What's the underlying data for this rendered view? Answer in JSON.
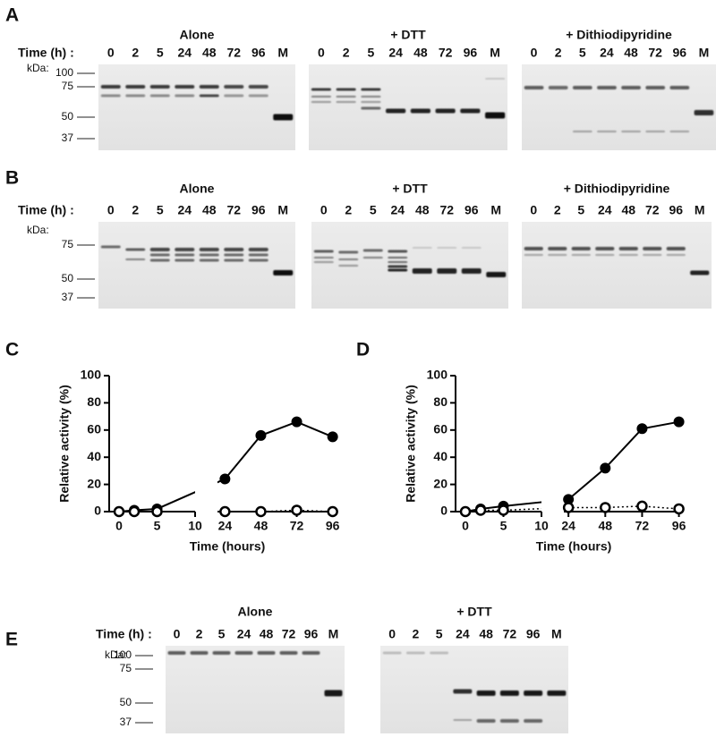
{
  "gels": [
    {
      "label": "A",
      "time_label": "Time (h) :",
      "kda_label": "kDa:",
      "markers": [
        "100",
        "75",
        "50",
        "37"
      ],
      "groups": [
        {
          "title": "Alone",
          "lanes": [
            "0",
            "2",
            "5",
            "24",
            "48",
            "72",
            "96",
            "M"
          ]
        },
        {
          "title": "+ DTT",
          "lanes": [
            "0",
            "2",
            "5",
            "24",
            "48",
            "72",
            "96",
            "M"
          ]
        },
        {
          "title": "+ Dithiodipyridine",
          "lanes": [
            "0",
            "2",
            "5",
            "24",
            "48",
            "72",
            "96",
            "M"
          ]
        }
      ]
    },
    {
      "label": "B",
      "time_label": "Time (h) :",
      "kda_label": "kDa:",
      "markers": [
        "75",
        "50",
        "37"
      ],
      "groups": [
        {
          "title": "Alone",
          "lanes": [
            "0",
            "2",
            "5",
            "24",
            "48",
            "72",
            "96",
            "M"
          ]
        },
        {
          "title": "+ DTT",
          "lanes": [
            "0",
            "2",
            "5",
            "24",
            "48",
            "72",
            "96",
            "M"
          ]
        },
        {
          "title": "+ Dithiodipyridine",
          "lanes": [
            "0",
            "2",
            "5",
            "24",
            "48",
            "72",
            "96",
            "M"
          ]
        }
      ]
    },
    {
      "label": "E",
      "time_label": "Time (h) :",
      "kda_label": "kDa:",
      "markers": [
        "100",
        "75",
        "50",
        "37"
      ],
      "groups": [
        {
          "title": "Alone",
          "lanes": [
            "0",
            "2",
            "5",
            "24",
            "48",
            "72",
            "96",
            "M"
          ]
        },
        {
          "title": "+ DTT",
          "lanes": [
            "0",
            "2",
            "5",
            "24",
            "48",
            "72",
            "96",
            "M"
          ]
        }
      ]
    }
  ],
  "chart_data": [
    {
      "type": "line",
      "label": "C",
      "ylabel": "Relative activity (%)",
      "xlabel": "Time (hours)",
      "x": [
        0,
        2,
        5,
        24,
        48,
        72,
        96
      ],
      "xlim": [
        0,
        98
      ],
      "xbreak": [
        10,
        19
      ],
      "xticks": [
        0,
        5,
        10,
        24,
        48,
        72,
        96
      ],
      "ylim": [
        0,
        100
      ],
      "yticks": [
        0,
        20,
        40,
        60,
        80,
        100
      ],
      "series": [
        {
          "color": "#000000",
          "marker": "filled",
          "line": "solid",
          "values": [
            0,
            1,
            2,
            24,
            56,
            66,
            55
          ]
        },
        {
          "color": "#000000",
          "marker": "open",
          "line": "dotted",
          "values": [
            0,
            0,
            0,
            0,
            0,
            1,
            0
          ]
        }
      ]
    },
    {
      "type": "line",
      "label": "D",
      "ylabel": "Relative activity (%)",
      "xlabel": "Time (hours)",
      "x": [
        0,
        2,
        5,
        24,
        48,
        72,
        96
      ],
      "xlim": [
        0,
        98
      ],
      "xbreak": [
        10,
        21
      ],
      "xticks": [
        0,
        5,
        10,
        24,
        48,
        72,
        96
      ],
      "ylim": [
        0,
        100
      ],
      "yticks": [
        0,
        20,
        40,
        60,
        80,
        100
      ],
      "series": [
        {
          "color": "#000000",
          "marker": "filled",
          "line": "solid",
          "values": [
            0,
            2,
            4,
            9,
            32,
            61,
            66
          ]
        },
        {
          "color": "#000000",
          "marker": "open",
          "line": "dotted",
          "values": [
            0,
            1,
            1,
            3,
            3,
            4,
            2
          ]
        }
      ]
    }
  ]
}
